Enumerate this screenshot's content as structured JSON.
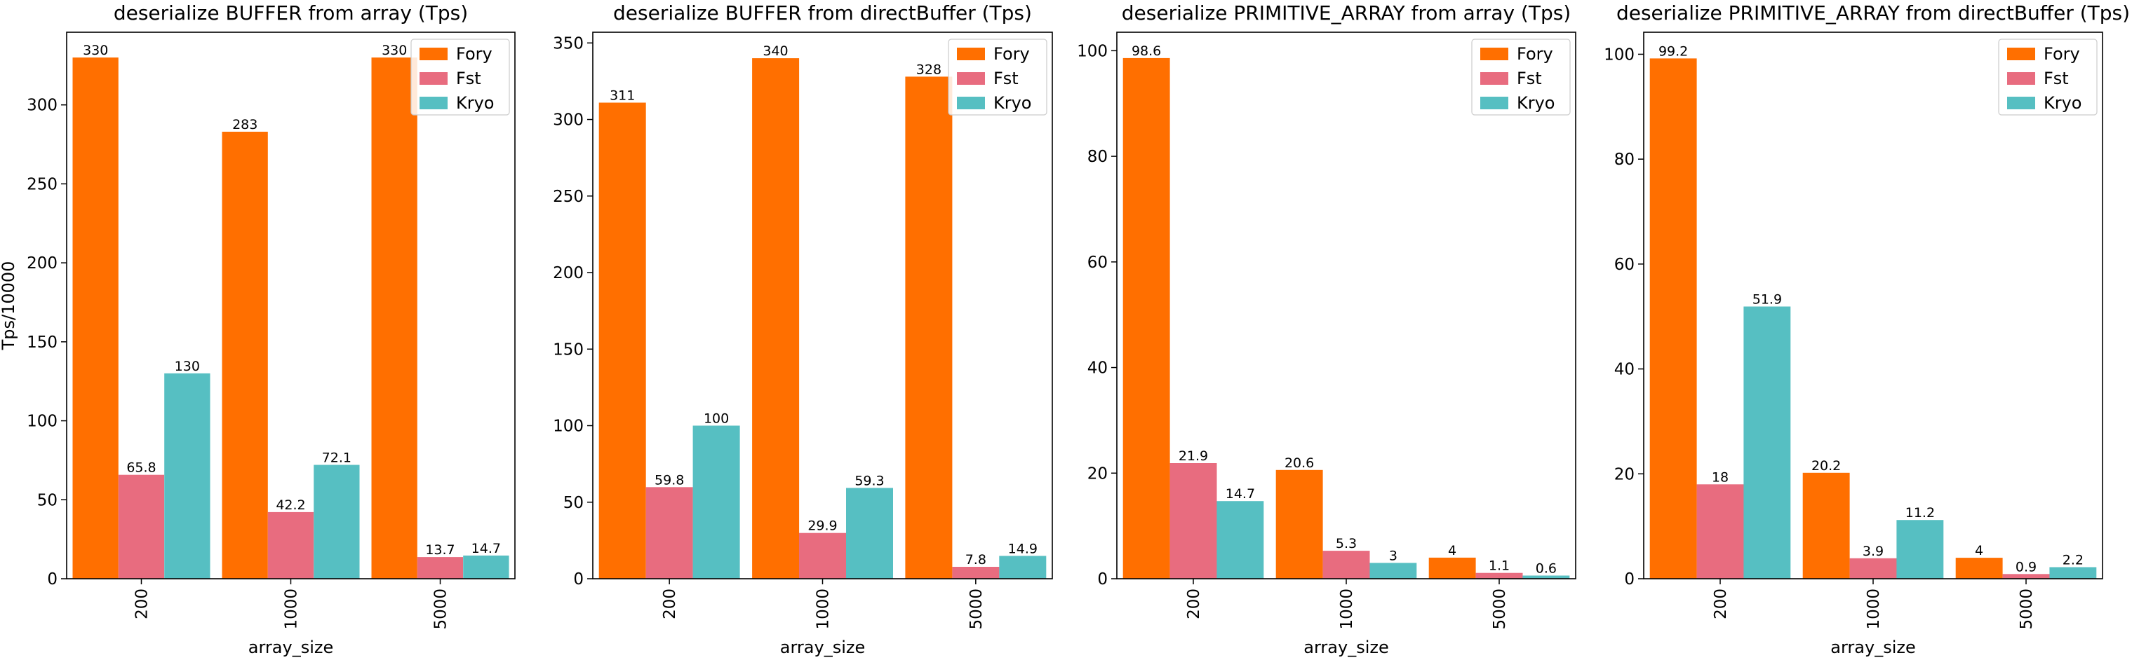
{
  "series_colors": {
    "Fory": "#ff6f00",
    "Fst": "#e86c7f",
    "Kryo": "#56bfc2"
  },
  "chart_data": [
    {
      "type": "bar",
      "title": "deserialize BUFFER from array (Tps)",
      "xlabel": "array_size",
      "ylabel": "Tps/10000",
      "categories": [
        "200",
        "1000",
        "5000"
      ],
      "ylim": [
        0,
        346
      ],
      "yticks": [
        0,
        50,
        100,
        150,
        200,
        250,
        300
      ],
      "legend": "top-right",
      "series": [
        {
          "name": "Fory",
          "values": [
            330,
            283,
            330
          ]
        },
        {
          "name": "Fst",
          "values": [
            65.8,
            42.2,
            13.7
          ]
        },
        {
          "name": "Kryo",
          "values": [
            130,
            72.1,
            14.7
          ]
        }
      ]
    },
    {
      "type": "bar",
      "title": "deserialize BUFFER from directBuffer (Tps)",
      "xlabel": "array_size",
      "ylabel": "",
      "categories": [
        "200",
        "1000",
        "5000"
      ],
      "ylim": [
        0,
        357
      ],
      "yticks": [
        0,
        50,
        100,
        150,
        200,
        250,
        300,
        350
      ],
      "legend": "top-right",
      "series": [
        {
          "name": "Fory",
          "values": [
            311,
            340,
            328
          ]
        },
        {
          "name": "Fst",
          "values": [
            59.8,
            29.9,
            7.8
          ]
        },
        {
          "name": "Kryo",
          "values": [
            100,
            59.3,
            14.9
          ]
        }
      ]
    },
    {
      "type": "bar",
      "title": "deserialize PRIMITIVE_ARRAY from array (Tps)",
      "xlabel": "array_size",
      "ylabel": "",
      "categories": [
        "200",
        "1000",
        "5000"
      ],
      "ylim": [
        0,
        103.5
      ],
      "yticks": [
        0,
        20,
        40,
        60,
        80,
        100
      ],
      "legend": "top-right",
      "series": [
        {
          "name": "Fory",
          "values": [
            98.6,
            20.6,
            4
          ]
        },
        {
          "name": "Fst",
          "values": [
            21.9,
            5.3,
            1.1
          ]
        },
        {
          "name": "Kryo",
          "values": [
            14.7,
            3,
            0.6
          ]
        }
      ]
    },
    {
      "type": "bar",
      "title": "deserialize PRIMITIVE_ARRAY from directBuffer (Tps)",
      "xlabel": "array_size",
      "ylabel": "",
      "categories": [
        "200",
        "1000",
        "5000"
      ],
      "ylim": [
        0,
        104.2
      ],
      "yticks": [
        0,
        20,
        40,
        60,
        80,
        100
      ],
      "legend": "top-right",
      "series": [
        {
          "name": "Fory",
          "values": [
            99.2,
            20.2,
            4
          ]
        },
        {
          "name": "Fst",
          "values": [
            18,
            3.9,
            0.9
          ]
        },
        {
          "name": "Kryo",
          "values": [
            51.9,
            11.2,
            2.2
          ]
        }
      ]
    }
  ]
}
